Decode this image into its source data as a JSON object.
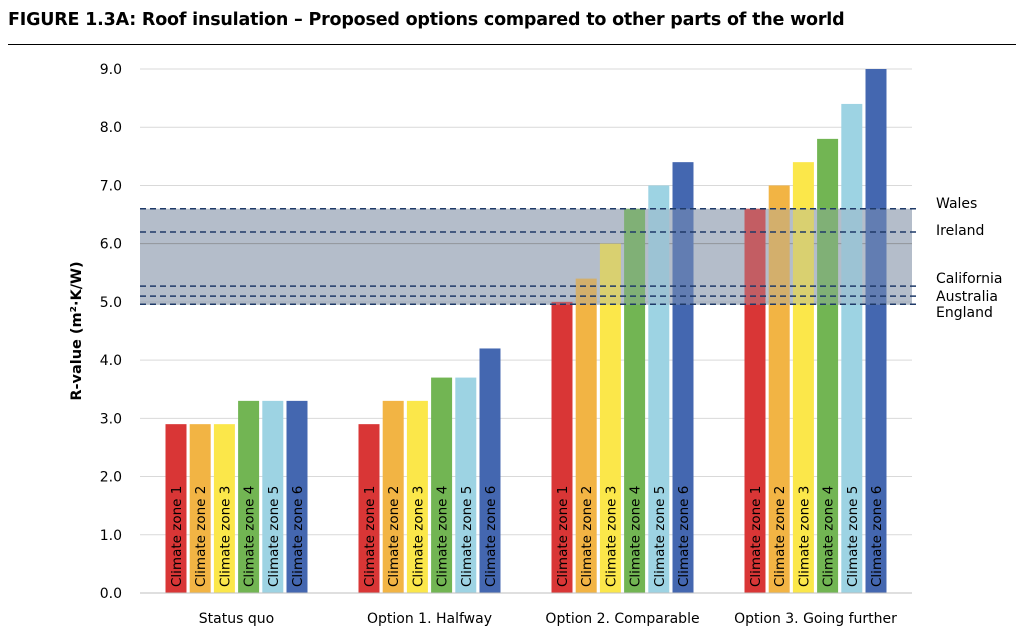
{
  "figure_title": "FIGURE 1.3A: Roof insulation – Proposed options compared to other parts of the world",
  "chart_data": {
    "type": "bar",
    "ylabel": "R-value (m²·K/W)",
    "ylim": [
      0,
      9
    ],
    "ytick_step": 1,
    "ytick_labels": [
      "0.0",
      "1.0",
      "2.0",
      "3.0",
      "4.0",
      "5.0",
      "6.0",
      "7.0",
      "8.0",
      "9.0"
    ],
    "grid": true,
    "categories": [
      "Status quo",
      "Option 1. Halfway",
      "Option 2. Comparable",
      "Option 3. Going further"
    ],
    "series": [
      {
        "name": "Climate zone 1",
        "color": "#d93636",
        "values": [
          2.9,
          2.9,
          5.0,
          6.6
        ]
      },
      {
        "name": "Climate zone 2",
        "color": "#f2b444",
        "values": [
          2.9,
          3.3,
          5.4,
          7.0
        ]
      },
      {
        "name": "Climate zone 3",
        "color": "#fbe74a",
        "values": [
          2.9,
          3.3,
          6.0,
          7.4
        ]
      },
      {
        "name": "Climate zone 4",
        "color": "#72b553",
        "values": [
          3.3,
          3.7,
          6.6,
          7.8
        ]
      },
      {
        "name": "Climate zone 5",
        "color": "#9dd3e3",
        "values": [
          3.3,
          3.7,
          7.0,
          8.4
        ]
      },
      {
        "name": "Climate zone 6",
        "color": "#4467b0",
        "values": [
          3.3,
          4.2,
          7.4,
          9.0
        ]
      }
    ],
    "reference_band": {
      "from": 4.95,
      "to": 6.6,
      "color": "#9aa6b7"
    },
    "reference_lines": [
      {
        "label": "Wales",
        "value": 6.6
      },
      {
        "label": "Ireland",
        "value": 6.2
      },
      {
        "label": "California",
        "value": 5.27
      },
      {
        "label": "Australia",
        "value": 5.1
      },
      {
        "label": "England",
        "value": 4.96
      }
    ]
  }
}
